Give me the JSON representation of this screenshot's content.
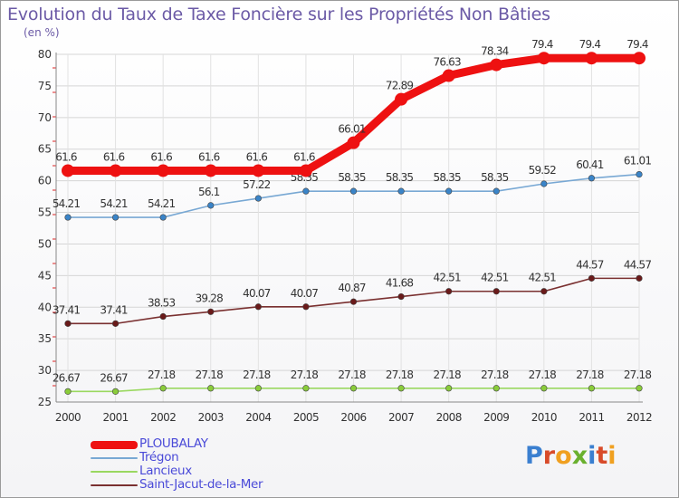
{
  "title": "Evolution du Taux de Taxe Foncière sur les Propriétés Non Bâties",
  "unit_label": "(en %)",
  "logo": {
    "text": "Proxiti",
    "letters": [
      "P",
      "r",
      "o",
      "x",
      "i",
      "t",
      "i"
    ],
    "colors": [
      "#3a7fd0",
      "#d84b2a",
      "#f0a020",
      "#6ab02e",
      "#3a7fd0",
      "#d84b2a",
      "#f0a020"
    ]
  },
  "chart_data": {
    "type": "line",
    "title": "Evolution du Taux de Taxe Foncière sur les Propriétés Non Bâties",
    "ylabel": "(en %)",
    "xlabel": "",
    "ylim": [
      25,
      80
    ],
    "yticks": [
      25,
      30,
      35,
      40,
      45,
      50,
      55,
      60,
      65,
      70,
      75,
      80
    ],
    "x": [
      "2000",
      "2001",
      "2002",
      "2003",
      "2004",
      "2005",
      "2006",
      "2007",
      "2008",
      "2009",
      "2010",
      "2011",
      "2012"
    ],
    "series": [
      {
        "name": "PLOUBALAY",
        "color": "#ee1111",
        "marker": "#ee1111",
        "bold": true,
        "values": [
          61.6,
          61.6,
          61.6,
          61.6,
          61.6,
          61.6,
          66.01,
          72.89,
          76.63,
          78.34,
          79.4,
          79.4,
          79.4
        ],
        "labels": [
          "61.6",
          "61.6",
          "61.6",
          "61.6",
          "61.6",
          "61.6",
          "66.01",
          "72.89",
          "76.63",
          "78.34",
          "79.4",
          "79.4",
          "79.4"
        ]
      },
      {
        "name": "Trégon",
        "color": "#78a8d4",
        "marker": "#3a84c8",
        "bold": false,
        "values": [
          54.21,
          54.21,
          54.21,
          56.1,
          57.22,
          58.35,
          58.35,
          58.35,
          58.35,
          58.35,
          59.52,
          60.41,
          61.01
        ],
        "labels": [
          "54.21",
          "54.21",
          "54.21",
          "56.1",
          "57.22",
          "58.35",
          "58.35",
          "58.35",
          "58.35",
          "58.35",
          "59.52",
          "60.41",
          "61.01"
        ]
      },
      {
        "name": "Lancieux",
        "color": "#9ad860",
        "marker": "#8acc3a",
        "bold": false,
        "values": [
          26.67,
          26.67,
          27.18,
          27.18,
          27.18,
          27.18,
          27.18,
          27.18,
          27.18,
          27.18,
          27.18,
          27.18,
          27.18
        ],
        "labels": [
          "26.67",
          "26.67",
          "27.18",
          "27.18",
          "27.18",
          "27.18",
          "27.18",
          "27.18",
          "27.18",
          "27.18",
          "27.18",
          "27.18",
          "27.18"
        ]
      },
      {
        "name": "Saint-Jacut-de-la-Mer",
        "color": "#7a3030",
        "marker": "#6a1a1a",
        "bold": false,
        "values": [
          37.41,
          37.41,
          38.53,
          39.28,
          40.07,
          40.07,
          40.87,
          41.68,
          42.51,
          42.51,
          42.51,
          44.57,
          44.57
        ],
        "labels": [
          "37.41",
          "37.41",
          "38.53",
          "39.28",
          "40.07",
          "40.07",
          "40.87",
          "41.68",
          "42.51",
          "42.51",
          "42.51",
          "44.57",
          "44.57"
        ]
      }
    ]
  }
}
